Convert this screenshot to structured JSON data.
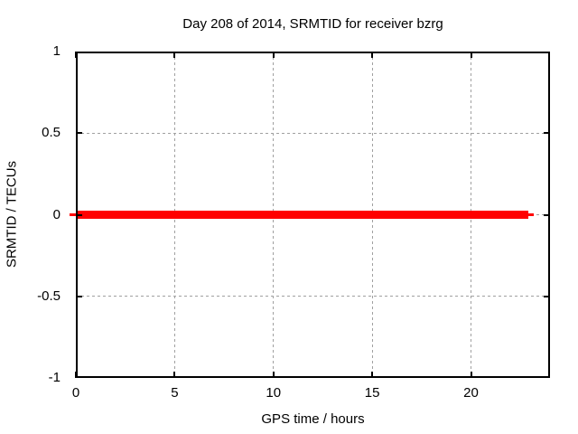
{
  "chart_data": {
    "type": "line",
    "title": "Day 208 of 2014, SRMTID for receiver bzrg",
    "xlabel": "GPS time / hours",
    "ylabel": "SRMTID / TECUs",
    "xlim": [
      0,
      24
    ],
    "ylim": [
      -1,
      1
    ],
    "x_ticks": [
      0,
      5,
      10,
      15,
      20
    ],
    "y_ticks": [
      1,
      0.5,
      0,
      -0.5,
      -1
    ],
    "grid": true,
    "legend": "none",
    "series": [
      {
        "name": "SRMTID",
        "color": "#ff0000",
        "style": "thick constant horizontal line",
        "x": [
          0,
          22.9
        ],
        "y": [
          0,
          0
        ]
      }
    ]
  },
  "colors": {
    "background": "#ffffff",
    "axis": "#000000",
    "grid": "#a0a0a0",
    "series": "#ff0000",
    "text": "#000000"
  }
}
